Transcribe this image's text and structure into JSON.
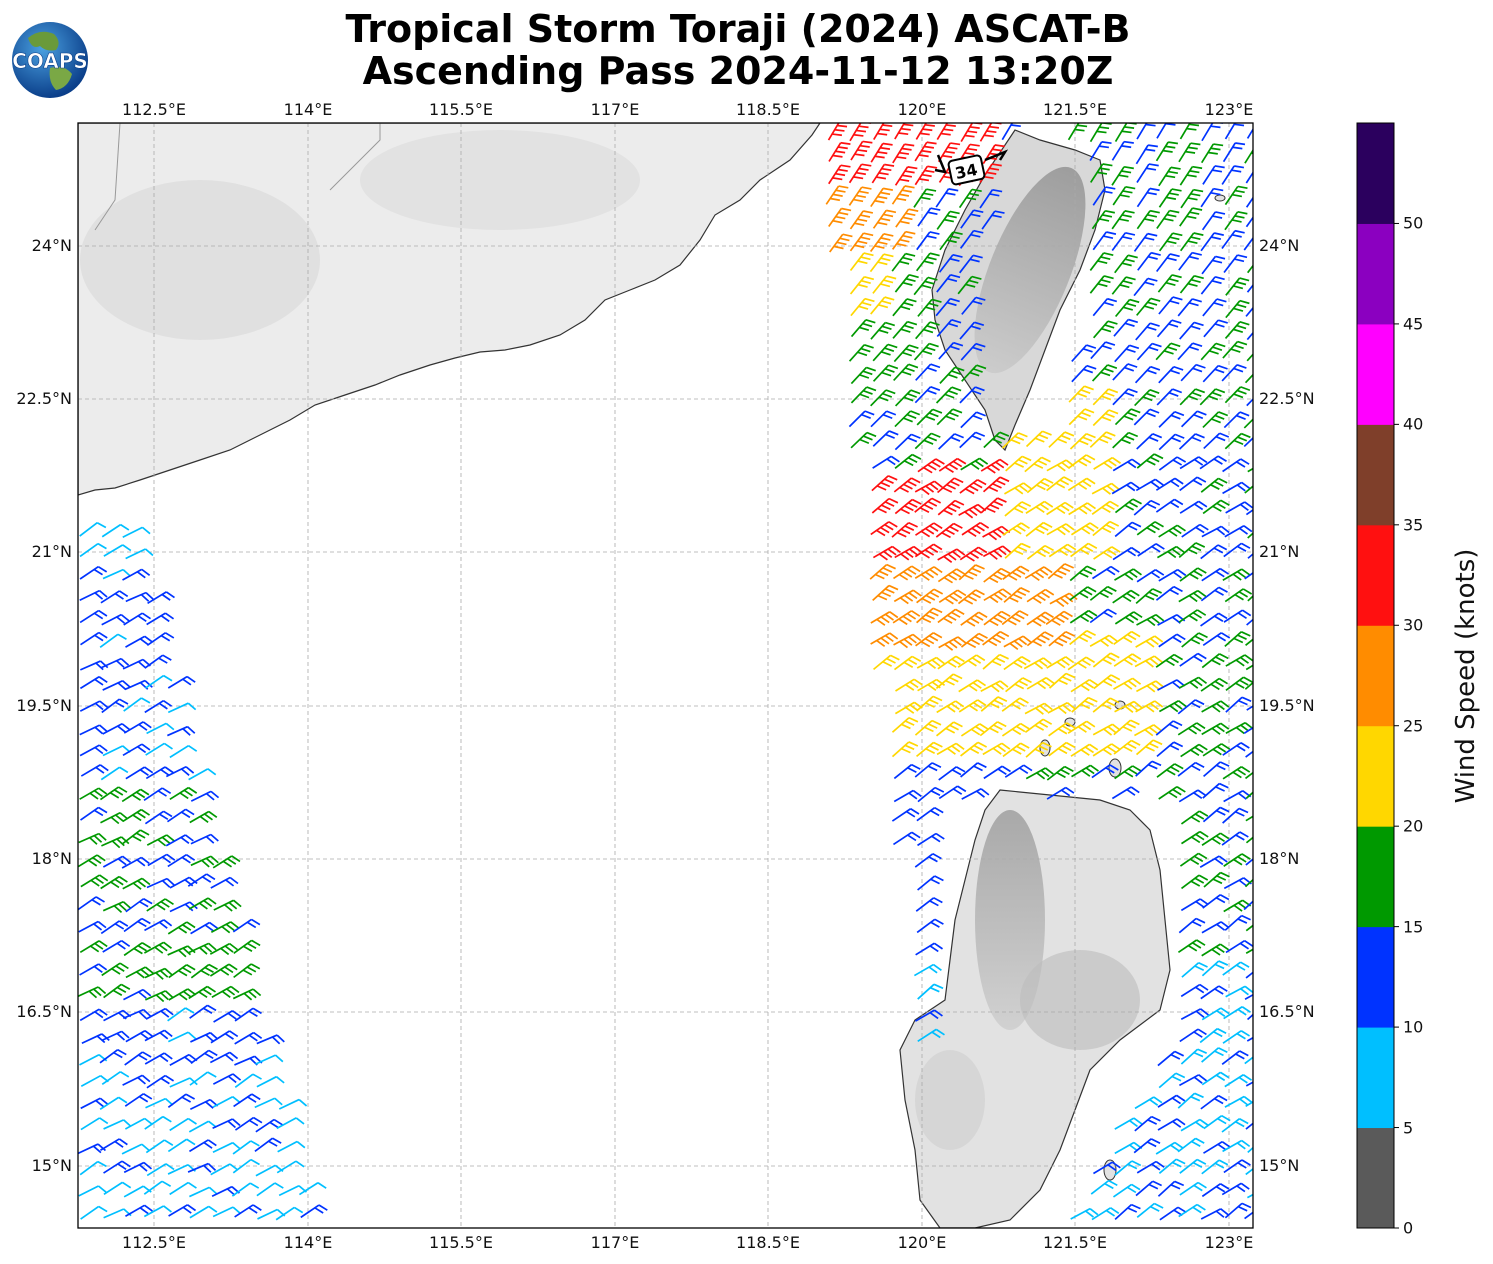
{
  "header": {
    "title_line1": "Tropical Storm Toraji (2024) ASCAT-B",
    "title_line2": "Ascending Pass 2024-11-12 13:20Z",
    "logo_text": "COAPS"
  },
  "map": {
    "lon_labels": [
      "112.5°E",
      "114°E",
      "115.5°E",
      "117°E",
      "118.5°E",
      "120°E",
      "121.5°E",
      "123°E"
    ],
    "lat_labels": [
      "24°N",
      "22.5°N",
      "21°N",
      "19.5°N",
      "18°N",
      "16.5°N",
      "15°N"
    ],
    "storm_label": "34",
    "land_gray": "#e6e6e6",
    "coast_color": "#333333"
  },
  "colorbar": {
    "label": "Wind Speed (knots)",
    "ticks": [
      "0",
      "5",
      "10",
      "15",
      "20",
      "25",
      "30",
      "35",
      "40",
      "45",
      "50"
    ],
    "colors": [
      "#5a5a5a",
      "#00bfff",
      "#0033ff",
      "#009900",
      "#ffd700",
      "#ff8c00",
      "#ff1010",
      "#7f3f2a",
      "#ff00ff",
      "#8b00c0",
      "#2b005e"
    ]
  }
}
